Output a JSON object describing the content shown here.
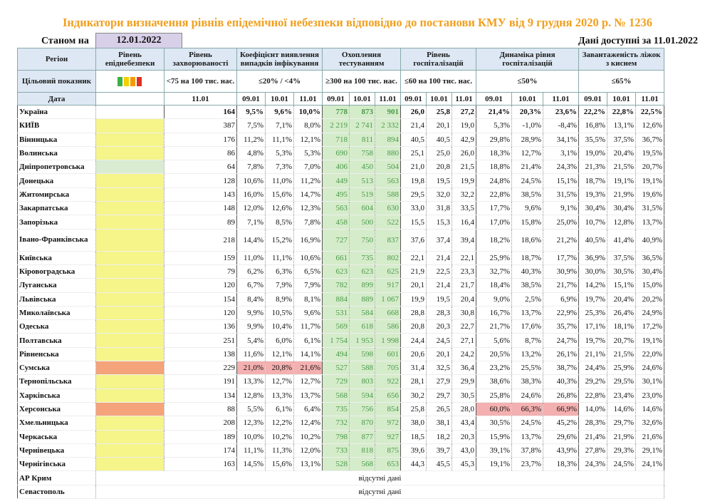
{
  "title": "Індикатори визначення рівнів епідемічної небезпеки відповідно до постанови КМУ від 9 грудня 2020 р. № 1236",
  "status_label": "Станом на",
  "status_date": "12.01.2022",
  "available": "Дані доступні за 11.01.2022",
  "colors": {
    "title": "#f0a020",
    "header_bg": "#dde8f4",
    "yellow": "#f5f58a",
    "orange": "#f4a37a",
    "red": "#f4b0b0",
    "green": "#d5ecca"
  },
  "headers": {
    "region": "Регіон",
    "level": "Рівень епіднебезпеки",
    "morbidity": "Рівень захворюваності",
    "detection": "Коефіцієнт виявлення випадків інфікування",
    "testing": "Охоплення тестуванням",
    "hosp": "Рівень госпіталізацій",
    "hosp_dyn": "Динаміка рівня госпіталізацій",
    "beds": "Завантаженість ліжок з киснем"
  },
  "target": {
    "label": "Цільовий показник",
    "legend_colors": [
      "#3cb043",
      "#f5d000",
      "#f59a00",
      "#e03020"
    ],
    "morbidity": "<75 на 100 тис. нас.",
    "detection": "≤20% / <4%",
    "testing": "≥300 на 100 тис. нас.",
    "hosp": "≤60 на 100 тис. нас.",
    "hosp_dyn": "≤50%",
    "beds": "≤65%"
  },
  "dates": {
    "label": "Дата",
    "morbidity": "11.01",
    "cols": [
      "09.01",
      "10.01",
      "11.01"
    ]
  },
  "rows": [
    {
      "name": "Україна",
      "lvl": "",
      "m": "164",
      "d": [
        "9,5%",
        "9,6%",
        "10,0%"
      ],
      "t": [
        "778",
        "873",
        "901"
      ],
      "h": [
        "26,0",
        "25,8",
        "27,2"
      ],
      "hd": [
        "21,4%",
        "20,3%",
        "23,6%"
      ],
      "b": [
        "22,2%",
        "22,8%",
        "22,5%"
      ]
    },
    {
      "name": "КИЇВ",
      "lvl": "yellow",
      "m": "387",
      "d": [
        "7,5%",
        "7,1%",
        "8,0%"
      ],
      "t": [
        "2 219",
        "2 741",
        "2 332"
      ],
      "h": [
        "21,4",
        "20,1",
        "19,0"
      ],
      "hd": [
        "5,3%",
        "-1,0%",
        "-8,4%"
      ],
      "b": [
        "16,8%",
        "13,1%",
        "12,6%"
      ]
    },
    {
      "name": "Вінницька",
      "lvl": "yellow",
      "m": "176",
      "d": [
        "11,2%",
        "11,1%",
        "12,1%"
      ],
      "t": [
        "718",
        "811",
        "894"
      ],
      "h": [
        "40,5",
        "40,5",
        "42,9"
      ],
      "hd": [
        "29,8%",
        "28,9%",
        "34,1%"
      ],
      "b": [
        "35,5%",
        "37,5%",
        "36,7%"
      ]
    },
    {
      "name": "Волинська",
      "lvl": "yellow",
      "m": "86",
      "d": [
        "4,8%",
        "5,3%",
        "5,3%"
      ],
      "t": [
        "690",
        "758",
        "880"
      ],
      "h": [
        "25,1",
        "25,0",
        "26,0"
      ],
      "hd": [
        "18,3%",
        "12,7%",
        "3,1%"
      ],
      "b": [
        "19,0%",
        "20,4%",
        "19,5%"
      ]
    },
    {
      "name": "Дніпропетровська",
      "lvl": "green",
      "m": "64",
      "d": [
        "7,8%",
        "7,3%",
        "7,0%"
      ],
      "t": [
        "406",
        "450",
        "504"
      ],
      "h": [
        "21,0",
        "20,8",
        "21,5"
      ],
      "hd": [
        "18,8%",
        "21,4%",
        "24,3%"
      ],
      "b": [
        "21,3%",
        "21,5%",
        "20,7%"
      ]
    },
    {
      "name": "Донецька",
      "lvl": "yellow",
      "m": "128",
      "d": [
        "10,6%",
        "11,0%",
        "11,2%"
      ],
      "t": [
        "449",
        "513",
        "563"
      ],
      "h": [
        "19,8",
        "19,5",
        "19,9"
      ],
      "hd": [
        "24,8%",
        "24,5%",
        "15,1%"
      ],
      "b": [
        "18,7%",
        "19,1%",
        "19,1%"
      ]
    },
    {
      "name": "Житомирська",
      "lvl": "yellow",
      "m": "143",
      "d": [
        "16,0%",
        "15,6%",
        "14,7%"
      ],
      "t": [
        "495",
        "519",
        "588"
      ],
      "h": [
        "29,5",
        "32,0",
        "32,2"
      ],
      "hd": [
        "22,8%",
        "38,5%",
        "31,5%"
      ],
      "b": [
        "19,3%",
        "21,9%",
        "19,6%"
      ]
    },
    {
      "name": "Закарпатська",
      "lvl": "yellow",
      "m": "148",
      "d": [
        "12,0%",
        "12,6%",
        "12,3%"
      ],
      "t": [
        "563",
        "604",
        "630"
      ],
      "h": [
        "33,0",
        "31,8",
        "33,5"
      ],
      "hd": [
        "17,7%",
        "9,6%",
        "9,1%"
      ],
      "b": [
        "30,4%",
        "30,4%",
        "31,5%"
      ]
    },
    {
      "name": "Запорізька",
      "lvl": "yellow",
      "m": "89",
      "d": [
        "7,1%",
        "8,5%",
        "7,8%"
      ],
      "t": [
        "458",
        "500",
        "522"
      ],
      "h": [
        "15,5",
        "15,3",
        "16,4"
      ],
      "hd": [
        "17,0%",
        "15,8%",
        "25,0%"
      ],
      "b": [
        "10,7%",
        "12,8%",
        "13,7%"
      ]
    },
    {
      "name": "Івано-Франківська",
      "lvl": "yellow",
      "m": "218",
      "d": [
        "14,4%",
        "15,2%",
        "16,9%"
      ],
      "t": [
        "727",
        "750",
        "837"
      ],
      "h": [
        "37,6",
        "37,4",
        "39,4"
      ],
      "hd": [
        "18,2%",
        "18,6%",
        "21,2%"
      ],
      "b": [
        "40,5%",
        "41,4%",
        "40,9%"
      ],
      "tall": true
    },
    {
      "name": "Київська",
      "lvl": "yellow",
      "m": "159",
      "d": [
        "11,0%",
        "11,1%",
        "10,6%"
      ],
      "t": [
        "661",
        "735",
        "802"
      ],
      "h": [
        "22,1",
        "21,4",
        "22,1"
      ],
      "hd": [
        "25,9%",
        "18,7%",
        "17,7%"
      ],
      "b": [
        "36,9%",
        "37,5%",
        "36,5%"
      ]
    },
    {
      "name": "Кіровоградська",
      "lvl": "yellow",
      "m": "79",
      "d": [
        "6,2%",
        "6,3%",
        "6,5%"
      ],
      "t": [
        "623",
        "623",
        "625"
      ],
      "h": [
        "21,9",
        "22,5",
        "23,3"
      ],
      "hd": [
        "32,7%",
        "40,3%",
        "30,9%"
      ],
      "b": [
        "30,0%",
        "30,5%",
        "30,4%"
      ]
    },
    {
      "name": "Луганська",
      "lvl": "yellow",
      "m": "120",
      "d": [
        "6,7%",
        "7,9%",
        "7,9%"
      ],
      "t": [
        "782",
        "899",
        "917"
      ],
      "h": [
        "20,1",
        "21,4",
        "21,7"
      ],
      "hd": [
        "18,4%",
        "38,5%",
        "21,7%"
      ],
      "b": [
        "14,2%",
        "15,1%",
        "15,0%"
      ]
    },
    {
      "name": "Львівська",
      "lvl": "yellow",
      "m": "154",
      "d": [
        "8,4%",
        "8,9%",
        "8,1%"
      ],
      "t": [
        "884",
        "889",
        "1 067"
      ],
      "h": [
        "19,9",
        "19,5",
        "20,4"
      ],
      "hd": [
        "9,0%",
        "2,5%",
        "6,9%"
      ],
      "b": [
        "19,7%",
        "20,4%",
        "20,2%"
      ]
    },
    {
      "name": "Миколаївська",
      "lvl": "yellow",
      "m": "120",
      "d": [
        "9,9%",
        "10,5%",
        "9,6%"
      ],
      "t": [
        "531",
        "584",
        "668"
      ],
      "h": [
        "28,8",
        "28,3",
        "30,8"
      ],
      "hd": [
        "16,7%",
        "13,7%",
        "22,9%"
      ],
      "b": [
        "25,3%",
        "26,4%",
        "24,9%"
      ]
    },
    {
      "name": "Одеська",
      "lvl": "yellow",
      "m": "136",
      "d": [
        "9,9%",
        "10,4%",
        "11,7%"
      ],
      "t": [
        "569",
        "618",
        "586"
      ],
      "h": [
        "20,8",
        "20,3",
        "22,7"
      ],
      "hd": [
        "21,7%",
        "17,6%",
        "35,7%"
      ],
      "b": [
        "17,1%",
        "18,1%",
        "17,2%"
      ]
    },
    {
      "name": "Полтавська",
      "lvl": "yellow",
      "m": "251",
      "d": [
        "5,4%",
        "6,0%",
        "6,1%"
      ],
      "t": [
        "1 754",
        "1 953",
        "1 998"
      ],
      "h": [
        "24,4",
        "24,5",
        "27,1"
      ],
      "hd": [
        "5,6%",
        "8,7%",
        "24,7%"
      ],
      "b": [
        "19,7%",
        "20,7%",
        "19,1%"
      ]
    },
    {
      "name": "Рівненська",
      "lvl": "yellow",
      "m": "138",
      "d": [
        "11,6%",
        "12,1%",
        "14,1%"
      ],
      "t": [
        "494",
        "598",
        "601"
      ],
      "h": [
        "20,6",
        "20,1",
        "24,2"
      ],
      "hd": [
        "20,5%",
        "13,2%",
        "26,1%"
      ],
      "b": [
        "21,1%",
        "21,5%",
        "22,0%"
      ]
    },
    {
      "name": "Сумська",
      "lvl": "orange",
      "m": "229",
      "d": [
        "21,0%",
        "20,8%",
        "21,6%"
      ],
      "dred": true,
      "t": [
        "527",
        "588",
        "705"
      ],
      "h": [
        "31,4",
        "32,5",
        "36,4"
      ],
      "hd": [
        "23,2%",
        "25,5%",
        "38,7%"
      ],
      "b": [
        "24,4%",
        "25,9%",
        "24,6%"
      ]
    },
    {
      "name": "Тернопільська",
      "lvl": "yellow",
      "m": "191",
      "d": [
        "13,3%",
        "12,7%",
        "12,7%"
      ],
      "t": [
        "729",
        "803",
        "922"
      ],
      "h": [
        "28,1",
        "27,9",
        "29,9"
      ],
      "hd": [
        "38,6%",
        "38,3%",
        "40,3%"
      ],
      "b": [
        "29,2%",
        "29,5%",
        "30,1%"
      ]
    },
    {
      "name": "Харківська",
      "lvl": "yellow",
      "m": "134",
      "d": [
        "12,8%",
        "13,3%",
        "13,7%"
      ],
      "t": [
        "568",
        "594",
        "656"
      ],
      "h": [
        "30,2",
        "29,7",
        "30,5"
      ],
      "hd": [
        "25,8%",
        "24,6%",
        "26,8%"
      ],
      "b": [
        "22,8%",
        "23,4%",
        "23,0%"
      ]
    },
    {
      "name": "Херсонська",
      "lvl": "orange",
      "m": "88",
      "d": [
        "5,5%",
        "6,1%",
        "6,4%"
      ],
      "t": [
        "735",
        "756",
        "854"
      ],
      "h": [
        "25,8",
        "26,5",
        "28,0"
      ],
      "hd": [
        "60,0%",
        "66,3%",
        "66,9%"
      ],
      "hdred": true,
      "b": [
        "14,0%",
        "14,6%",
        "14,6%"
      ]
    },
    {
      "name": "Хмельницька",
      "lvl": "yellow",
      "m": "208",
      "d": [
        "12,3%",
        "12,2%",
        "12,4%"
      ],
      "t": [
        "732",
        "870",
        "972"
      ],
      "h": [
        "38,0",
        "38,1",
        "43,4"
      ],
      "hd": [
        "30,5%",
        "24,5%",
        "45,2%"
      ],
      "b": [
        "28,3%",
        "29,7%",
        "32,6%"
      ]
    },
    {
      "name": "Черкаська",
      "lvl": "yellow",
      "m": "189",
      "d": [
        "10,0%",
        "10,2%",
        "10,2%"
      ],
      "t": [
        "798",
        "877",
        "927"
      ],
      "h": [
        "18,5",
        "18,2",
        "20,3"
      ],
      "hd": [
        "15,9%",
        "13,7%",
        "29,6%"
      ],
      "b": [
        "21,4%",
        "21,9%",
        "21,6%"
      ]
    },
    {
      "name": "Чернівецька",
      "lvl": "yellow",
      "m": "174",
      "d": [
        "11,1%",
        "11,3%",
        "12,0%"
      ],
      "t": [
        "733",
        "818",
        "875"
      ],
      "h": [
        "39,6",
        "39,7",
        "43,0"
      ],
      "hd": [
        "39,1%",
        "37,8%",
        "43,9%"
      ],
      "b": [
        "27,8%",
        "29,3%",
        "29,1%"
      ]
    },
    {
      "name": "Чернігівська",
      "lvl": "yellow",
      "m": "163",
      "d": [
        "14,5%",
        "15,6%",
        "13,1%"
      ],
      "t": [
        "528",
        "568",
        "653"
      ],
      "h": [
        "44,3",
        "45,5",
        "45,3"
      ],
      "hd": [
        "19,1%",
        "23,7%",
        "18,3%"
      ],
      "b": [
        "24,3%",
        "24,5%",
        "24,1%"
      ]
    }
  ],
  "missing": [
    {
      "name": "АР Крим",
      "text": "відсутні дані"
    },
    {
      "name": "Севастополь",
      "text": "відсутні дані"
    }
  ]
}
